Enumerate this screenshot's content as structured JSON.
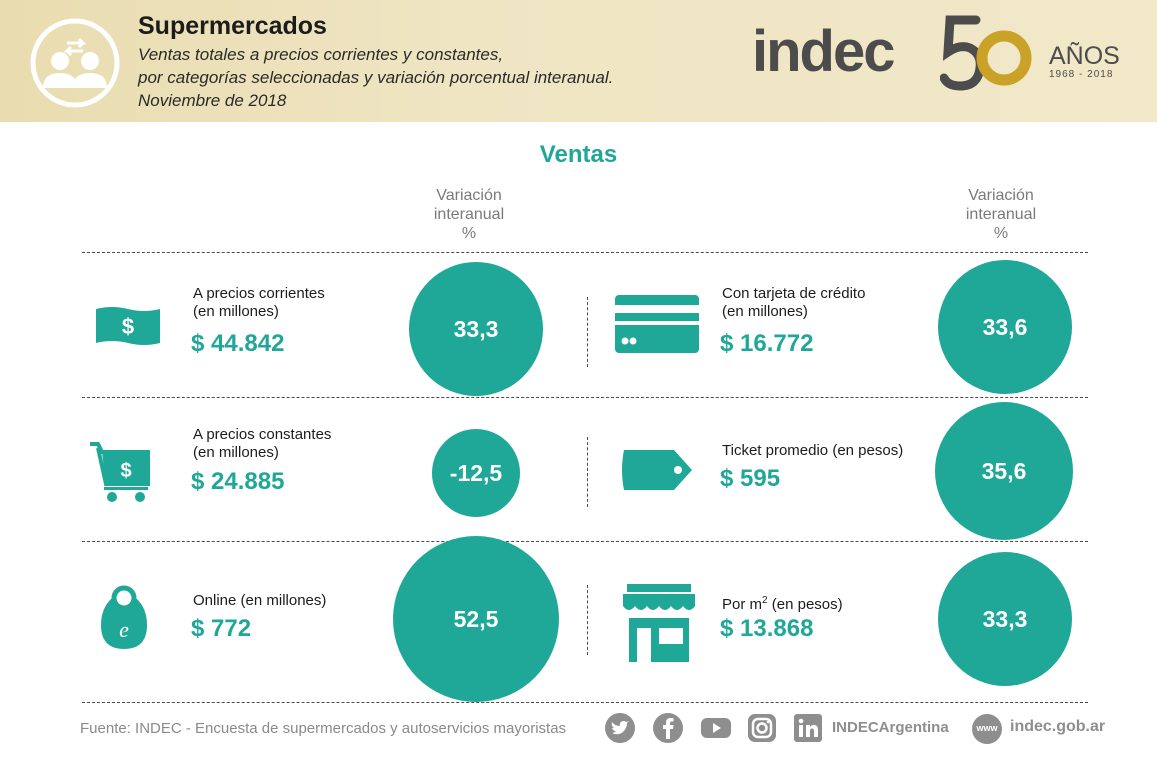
{
  "header": {
    "title": "Supermercados",
    "subtitle_lines": [
      "Ventas totales a precios corrientes y constantes,",
      "por categorías seleccionadas y variación porcentual interanual.",
      "Noviembre de 2018"
    ],
    "logo_text": "indec",
    "logo_number": "50",
    "anos_label": "AÑOS",
    "anos_years": "1968 - 2018"
  },
  "section_title": "Ventas",
  "variation_header": [
    "Variación",
    "interanual",
    "%"
  ],
  "items": [
    {
      "label_lines": [
        "A precios corrientes",
        "(en millones)"
      ],
      "value": "$ 44.842",
      "variation": "33,3",
      "icon": "banknote-icon"
    },
    {
      "label_lines": [
        "Con tarjeta de crédito",
        "(en millones)"
      ],
      "value": "$ 16.772",
      "variation": "33,6",
      "icon": "credit-card-icon"
    },
    {
      "label_lines": [
        "A precios constantes",
        "(en millones)"
      ],
      "value": "$ 24.885",
      "variation": "-12,5",
      "icon": "shopping-cart-icon"
    },
    {
      "label_lines": [
        "Ticket promedio (en pesos)"
      ],
      "value": "$ 595",
      "variation": "35,6",
      "icon": "price-tag-icon"
    },
    {
      "label_lines": [
        "Online (en millones)"
      ],
      "value": "$ 772",
      "variation": "52,5",
      "icon": "online-bag-icon"
    },
    {
      "label_lines": [
        "Por m",
        "(en pesos)"
      ],
      "label_superscript": "2",
      "value": "$ 13.868",
      "variation": "33,3",
      "icon": "storefront-icon"
    }
  ],
  "colors": {
    "accent": "#1fa797",
    "header_bg": "#efe5c3",
    "logo_gold": "#c9a227"
  },
  "footer": {
    "source": "Fuente:  INDEC - Encuesta de supermercados y autoservicios mayoristas",
    "social_icons": [
      "twitter-icon",
      "facebook-icon",
      "youtube-icon",
      "instagram-icon",
      "linkedin-icon"
    ],
    "handle": "INDECArgentina",
    "web_badge": "www",
    "website": "indec.gob.ar"
  }
}
